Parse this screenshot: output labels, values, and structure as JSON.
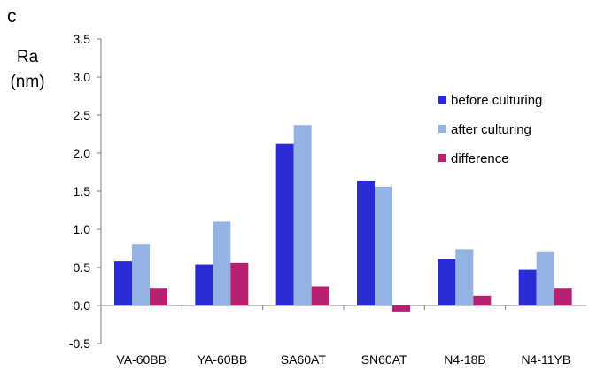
{
  "chart_data": {
    "type": "bar",
    "panel_label": "c",
    "ylabel_line1": "Ra",
    "ylabel_line2": "(nm)",
    "categories": [
      "VA-60BB",
      "YA-60BB",
      "SA60AT",
      "SN60AT",
      "N4-18B",
      "N4-11YB"
    ],
    "ylim": [
      -0.5,
      3.5
    ],
    "yticks": [
      -0.5,
      0.0,
      0.5,
      1.0,
      1.5,
      2.0,
      2.5,
      3.0,
      3.5
    ],
    "ytick_labels": [
      "-0.5",
      "0.0",
      "0.5",
      "1.0",
      "1.5",
      "2.0",
      "2.5",
      "3.0",
      "3.5"
    ],
    "grid": false,
    "legend_position": "top-right",
    "series": [
      {
        "name": "before culturing",
        "color": "#2a2ad6",
        "values": [
          0.58,
          0.54,
          2.12,
          1.64,
          0.61,
          0.47
        ]
      },
      {
        "name": "after culturing",
        "color": "#93b4e2",
        "values": [
          0.8,
          1.1,
          2.37,
          1.56,
          0.74,
          0.7
        ]
      },
      {
        "name": "difference",
        "color": "#b81f6e",
        "values": [
          0.23,
          0.56,
          0.25,
          -0.08,
          0.13,
          0.23
        ]
      }
    ]
  }
}
